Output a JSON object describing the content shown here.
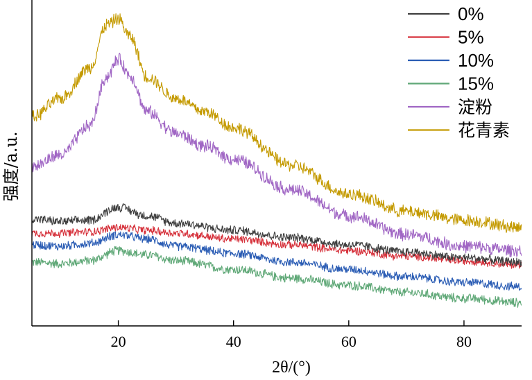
{
  "chart_data": {
    "type": "line",
    "xlabel": "2θ/(°)",
    "ylabel": "强度/a.u.",
    "xlim": [
      5,
      90
    ],
    "x_ticks": [
      20,
      40,
      60,
      80
    ],
    "y_ticks": [],
    "legend_position": "top-right",
    "series": [
      {
        "name": "0%",
        "color": "#3f3f3f",
        "x": [
          5,
          10,
          15,
          20,
          25,
          30,
          40,
          50,
          60,
          70,
          80,
          90
        ],
        "y": [
          0.74,
          0.72,
          0.73,
          0.82,
          0.76,
          0.71,
          0.66,
          0.61,
          0.56,
          0.51,
          0.47,
          0.44
        ]
      },
      {
        "name": "5%",
        "color": "#d6323c",
        "x": [
          5,
          10,
          15,
          20,
          25,
          30,
          40,
          50,
          60,
          70,
          80,
          90
        ],
        "y": [
          0.64,
          0.64,
          0.65,
          0.68,
          0.66,
          0.64,
          0.6,
          0.56,
          0.52,
          0.48,
          0.45,
          0.42
        ]
      },
      {
        "name": "10%",
        "color": "#2a5cb4",
        "x": [
          5,
          10,
          15,
          20,
          25,
          30,
          40,
          50,
          60,
          70,
          80,
          90
        ],
        "y": [
          0.56,
          0.55,
          0.57,
          0.63,
          0.6,
          0.55,
          0.5,
          0.44,
          0.39,
          0.34,
          0.3,
          0.27
        ]
      },
      {
        "name": "15%",
        "color": "#5fa877",
        "x": [
          5,
          10,
          15,
          20,
          25,
          30,
          40,
          50,
          60,
          70,
          80,
          90
        ],
        "y": [
          0.44,
          0.43,
          0.45,
          0.52,
          0.49,
          0.45,
          0.39,
          0.33,
          0.28,
          0.23,
          0.19,
          0.16
        ]
      },
      {
        "name": "淀粉",
        "color": "#a066c4",
        "x": [
          5,
          10,
          15,
          18,
          20,
          22,
          25,
          30,
          35,
          40,
          50,
          60,
          70,
          80,
          90
        ],
        "y": [
          1.1,
          1.18,
          1.38,
          1.72,
          1.84,
          1.73,
          1.48,
          1.33,
          1.24,
          1.15,
          0.94,
          0.76,
          0.63,
          0.55,
          0.52
        ]
      },
      {
        "name": "花青素",
        "color": "#c49a00",
        "x": [
          5,
          10,
          15,
          18,
          20,
          22,
          25,
          30,
          35,
          40,
          50,
          60,
          70,
          80,
          90
        ],
        "y": [
          1.44,
          1.57,
          1.78,
          2.08,
          2.12,
          2.0,
          1.72,
          1.57,
          1.48,
          1.37,
          1.11,
          0.91,
          0.79,
          0.73,
          0.68
        ]
      }
    ]
  }
}
